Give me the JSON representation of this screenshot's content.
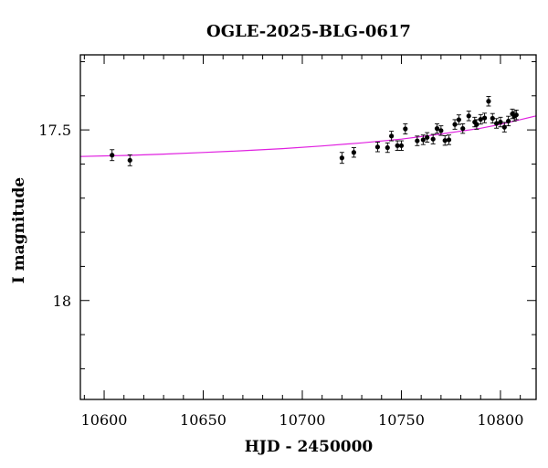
{
  "chart_data": {
    "type": "scatter",
    "title": "OGLE-2025-BLG-0617",
    "xlabel": "HJD - 2450000",
    "ylabel": "I magnitude",
    "xlim": [
      10588,
      10818
    ],
    "ylim": [
      18.29,
      17.28
    ],
    "y_inverted": true,
    "grid": false,
    "x_ticks": [
      10600,
      10650,
      10700,
      10750,
      10800
    ],
    "x_tick_labels": [
      "10600",
      "10650",
      "10700",
      "10750",
      "10800"
    ],
    "y_ticks": [
      17.5,
      18.0
    ],
    "y_tick_labels": [
      "17.5",
      "18"
    ],
    "x_minor_step": 10,
    "y_minor_step": 0.1,
    "colors": {
      "model": "#e020e0",
      "points": "#000000"
    },
    "series": [
      {
        "type": "scatter",
        "x": [
          10604,
          10613,
          10720,
          10726,
          10738,
          10743,
          10745,
          10748,
          10750,
          10752,
          10758,
          10761,
          10763,
          10766,
          10768,
          10770,
          10772,
          10774,
          10777,
          10779,
          10781,
          10784,
          10787,
          10788,
          10790,
          10792,
          10794,
          10796,
          10798,
          10800,
          10802,
          10804,
          10806,
          10807,
          10808
        ],
        "y": [
          17.574,
          17.589,
          17.582,
          17.566,
          17.55,
          17.552,
          17.518,
          17.546,
          17.546,
          17.497,
          17.532,
          17.529,
          17.522,
          17.527,
          17.496,
          17.502,
          17.531,
          17.529,
          17.484,
          17.47,
          17.496,
          17.459,
          17.477,
          17.484,
          17.469,
          17.465,
          17.416,
          17.466,
          17.481,
          17.477,
          17.492,
          17.474,
          17.453,
          17.46,
          17.456
        ],
        "err": [
          0.016,
          0.016,
          0.016,
          0.014,
          0.014,
          0.014,
          0.014,
          0.014,
          0.014,
          0.015,
          0.014,
          0.014,
          0.014,
          0.014,
          0.014,
          0.014,
          0.014,
          0.014,
          0.014,
          0.014,
          0.014,
          0.014,
          0.014,
          0.014,
          0.014,
          0.014,
          0.014,
          0.014,
          0.014,
          0.014,
          0.014,
          0.014,
          0.014,
          0.014,
          0.014
        ]
      },
      {
        "type": "line",
        "x": [
          10588,
          10610,
          10630,
          10650,
          10670,
          10690,
          10710,
          10730,
          10750,
          10770,
          10790,
          10800,
          10810,
          10818
        ],
        "y": [
          17.578,
          17.575,
          17.571,
          17.566,
          17.561,
          17.555,
          17.547,
          17.538,
          17.527,
          17.512,
          17.495,
          17.484,
          17.47,
          17.459
        ]
      }
    ]
  }
}
